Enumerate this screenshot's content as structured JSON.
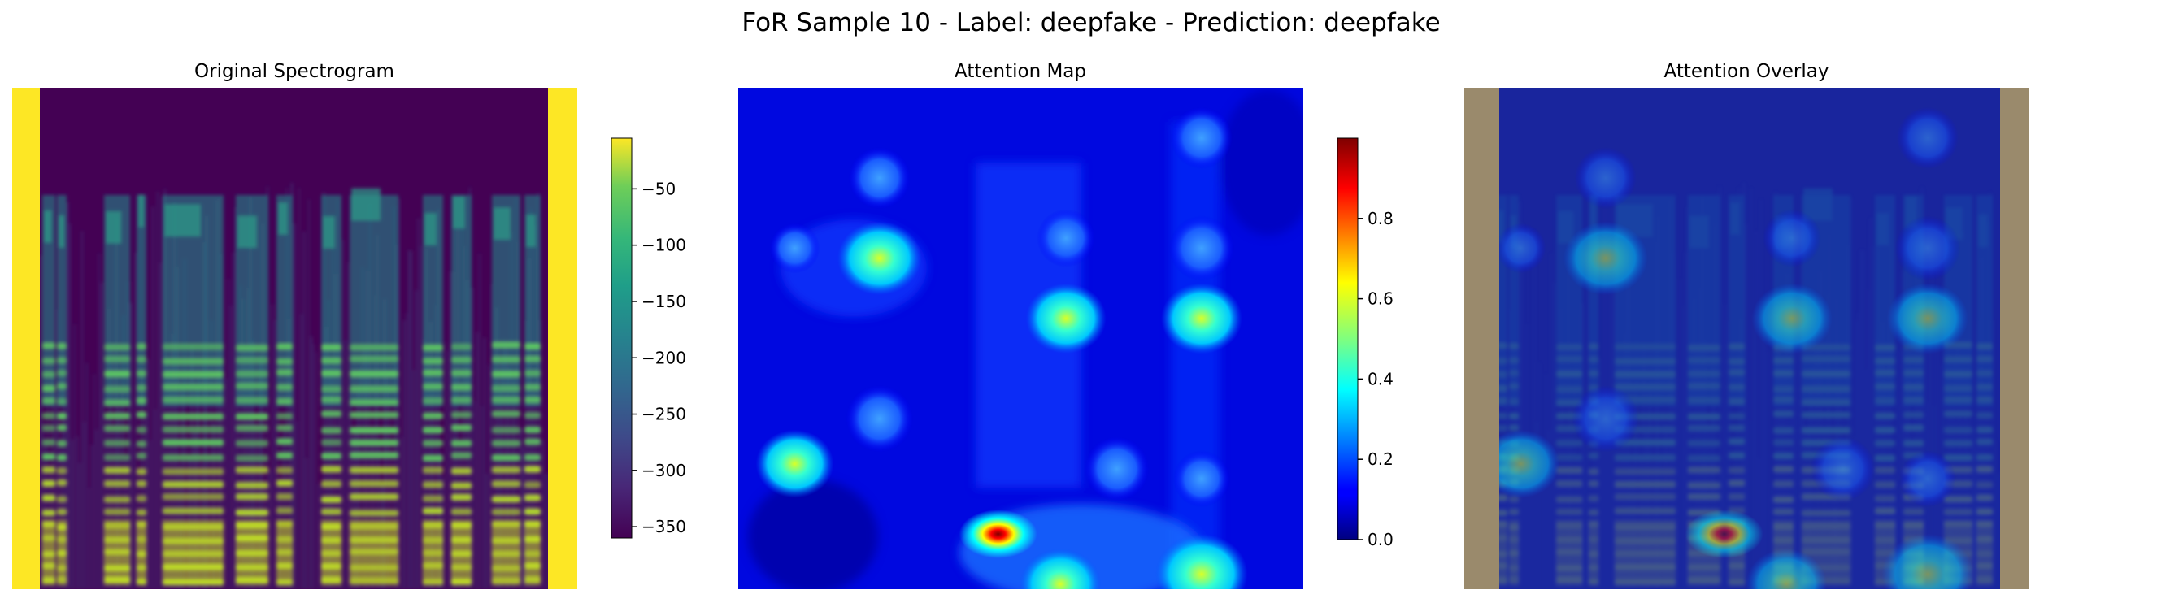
{
  "figure": {
    "title": "FoR Sample 10 - Label: deepfake - Prediction: deepfake"
  },
  "chart_data": [
    {
      "type": "heatmap",
      "title": "Original Spectrogram",
      "colormap": "viridis",
      "padding_color": "#fde725",
      "colorbar": {
        "range": [
          -360,
          -5
        ],
        "ticks": [
          -50,
          -100,
          -150,
          -200,
          -250,
          -300,
          -350
        ],
        "tick_labels": [
          "−50",
          "−100",
          "−150",
          "−200",
          "−250",
          "−300",
          "−350"
        ]
      },
      "axes_visible": false
    },
    {
      "type": "heatmap",
      "title": "Attention Map",
      "colormap": "jet",
      "colorbar": {
        "range": [
          0.0,
          1.0
        ],
        "ticks": [
          0.0,
          0.2,
          0.4,
          0.6,
          0.8
        ],
        "tick_labels": [
          "0.0",
          "0.2",
          "0.4",
          "0.6",
          "0.8"
        ]
      },
      "axes_visible": false,
      "hotspots": [
        {
          "x": 0.25,
          "y": 0.34,
          "value": 0.5
        },
        {
          "x": 0.25,
          "y": 0.18,
          "value": 0.3
        },
        {
          "x": 0.1,
          "y": 0.32,
          "value": 0.12
        },
        {
          "x": 0.25,
          "y": 0.66,
          "value": 0.38
        },
        {
          "x": 0.1,
          "y": 0.75,
          "value": 0.4
        },
        {
          "x": 0.58,
          "y": 0.3,
          "value": 0.24
        },
        {
          "x": 0.58,
          "y": 0.46,
          "value": 0.44
        },
        {
          "x": 0.67,
          "y": 0.76,
          "value": 0.34
        },
        {
          "x": 0.46,
          "y": 0.89,
          "value": 1.0
        },
        {
          "x": 0.57,
          "y": 0.99,
          "value": 0.45
        },
        {
          "x": 0.82,
          "y": 0.1,
          "value": 0.3
        },
        {
          "x": 0.82,
          "y": 0.32,
          "value": 0.35
        },
        {
          "x": 0.82,
          "y": 0.46,
          "value": 0.45
        },
        {
          "x": 0.82,
          "y": 0.78,
          "value": 0.22
        },
        {
          "x": 0.82,
          "y": 0.97,
          "value": 0.62
        }
      ]
    },
    {
      "type": "heatmap",
      "title": "Attention Overlay",
      "colormap": "jet over viridis",
      "axes_visible": false
    }
  ]
}
